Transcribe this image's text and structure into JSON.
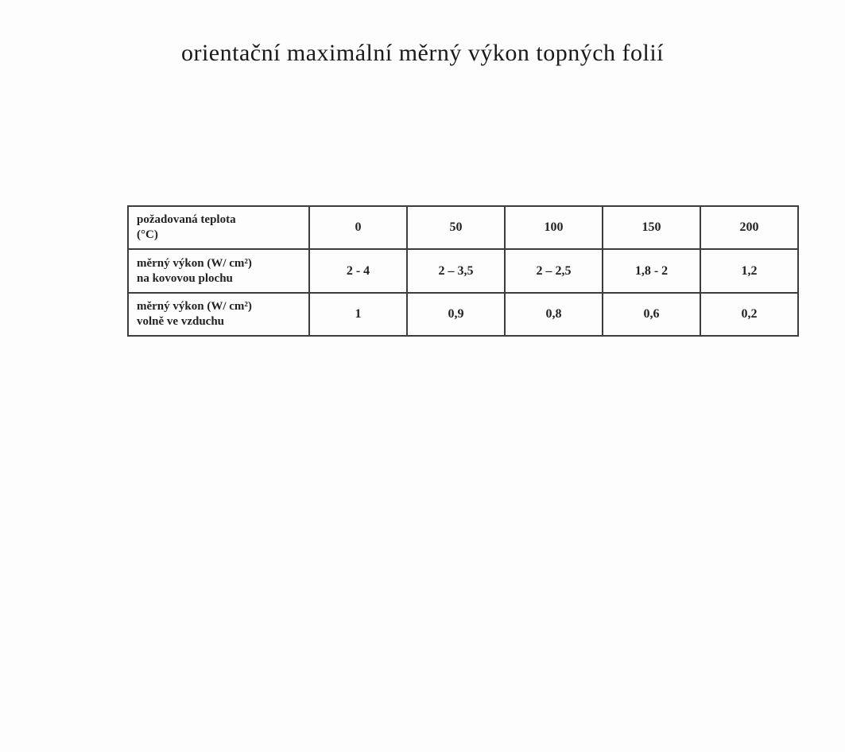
{
  "page": {
    "title": "orientační maximální měrný výkon topných folií"
  },
  "chart_data": {
    "type": "table",
    "title": "orientační maximální měrný výkon topných folií",
    "columns_label": "požadovaná teplota (°C)",
    "categories": [
      "0",
      "50",
      "100",
      "150",
      "200"
    ],
    "rows": [
      {
        "label": [
          "požadovaná teplota",
          "(°C)"
        ],
        "values": [
          "0",
          "50",
          "100",
          "150",
          "200"
        ]
      },
      {
        "label": [
          "měrný výkon (W/ cm²)",
          "na kovovou plochu"
        ],
        "values": [
          "2 - 4",
          "2 – 3,5",
          "2 – 2,5",
          "1,8 - 2",
          "1,2"
        ]
      },
      {
        "label": [
          "měrný výkon (W/ cm²)",
          "volně ve vzduchu"
        ],
        "values": [
          "1",
          "0,9",
          "0,8",
          "0,6",
          "0,2"
        ]
      }
    ],
    "colors": {
      "text": "#222222",
      "border": "#3d3d3d",
      "background": "#fdfdfd"
    }
  }
}
